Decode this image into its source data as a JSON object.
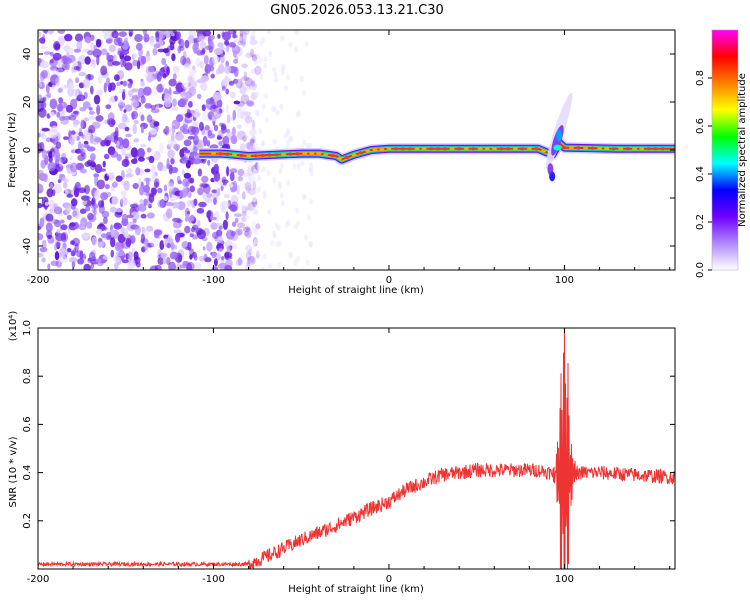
{
  "title": "GN05.2026.053.13.21.C30",
  "chart_data": [
    {
      "type": "heatmap",
      "name": "time-frequency spectrogram",
      "xlabel": "Height of straight line (km)",
      "ylabel": "Frequency (Hz)",
      "xlim": [
        -200,
        163
      ],
      "ylim": [
        -50,
        50
      ],
      "xticks": [
        -200,
        -100,
        0,
        100
      ],
      "yticks": [
        -40,
        -20,
        0,
        20,
        40
      ],
      "colorbar": {
        "label": "Normalized spectral amplitude",
        "range": [
          0,
          1
        ],
        "ticks": [
          "0.0",
          "0.2",
          "0.4",
          "0.6",
          "0.8"
        ],
        "colors": [
          "#ffffff",
          "#b088ff",
          "#7000ff",
          "#0000ff",
          "#00ffff",
          "#00ff00",
          "#ffff00",
          "#ff8000",
          "#ff0000",
          "#ff00ff"
        ]
      },
      "noise_region": {
        "x_range": [
          -200,
          -78
        ],
        "freq_range": [
          -50,
          50
        ]
      },
      "ridge": [
        {
          "x": -108,
          "freq": -1.5
        },
        {
          "x": -95,
          "freq": -1.5
        },
        {
          "x": -80,
          "freq": -2.5
        },
        {
          "x": -65,
          "freq": -2
        },
        {
          "x": -50,
          "freq": -1.5
        },
        {
          "x": -40,
          "freq": -1.5
        },
        {
          "x": -30,
          "freq": -2.5
        },
        {
          "x": -27,
          "freq": -4
        },
        {
          "x": -20,
          "freq": -2
        },
        {
          "x": -10,
          "freq": 0
        },
        {
          "x": 0,
          "freq": 0.5
        },
        {
          "x": 20,
          "freq": 0.5
        },
        {
          "x": 60,
          "freq": 0.5
        },
        {
          "x": 85,
          "freq": 0.5
        },
        {
          "x": 90,
          "freq": -1
        },
        {
          "x": 93,
          "freq": -2
        },
        {
          "x": 97,
          "freq": 3
        },
        {
          "x": 100,
          "freq": 1
        },
        {
          "x": 130,
          "freq": 0.5
        },
        {
          "x": 163,
          "freq": 0.5
        }
      ],
      "burst": {
        "x_range": [
          93,
          102
        ],
        "freq_range": [
          -22,
          35
        ]
      }
    },
    {
      "type": "line",
      "name": "SNR trace",
      "xlabel": "Height of straight line (km)",
      "ylabel": "SNR (10 * v/v)",
      "ylabel_multiplier": "(x10⁴)",
      "xlim": [
        -200,
        163
      ],
      "ylim": [
        0,
        1.0
      ],
      "xticks": [
        -200,
        -100,
        0,
        100
      ],
      "yticks": [
        0.2,
        0.4,
        0.6,
        0.8,
        1.0
      ],
      "color": "#ee3333",
      "noise_amplitude": 0.03,
      "baseline": [
        {
          "x": -200,
          "y": 0.02
        },
        {
          "x": -80,
          "y": 0.02
        },
        {
          "x": -70,
          "y": 0.05
        },
        {
          "x": -50,
          "y": 0.12
        },
        {
          "x": -30,
          "y": 0.18
        },
        {
          "x": -10,
          "y": 0.25
        },
        {
          "x": 0,
          "y": 0.28
        },
        {
          "x": 10,
          "y": 0.33
        },
        {
          "x": 30,
          "y": 0.39
        },
        {
          "x": 50,
          "y": 0.41
        },
        {
          "x": 70,
          "y": 0.41
        },
        {
          "x": 85,
          "y": 0.41
        },
        {
          "x": 92,
          "y": 0.4
        },
        {
          "x": 108,
          "y": 0.4
        },
        {
          "x": 120,
          "y": 0.4
        },
        {
          "x": 140,
          "y": 0.39
        },
        {
          "x": 163,
          "y": 0.38
        }
      ],
      "oscillation": {
        "x_range": [
          92,
          108
        ],
        "peak_x": 100,
        "peak_amplitude": 0.7
      }
    }
  ]
}
